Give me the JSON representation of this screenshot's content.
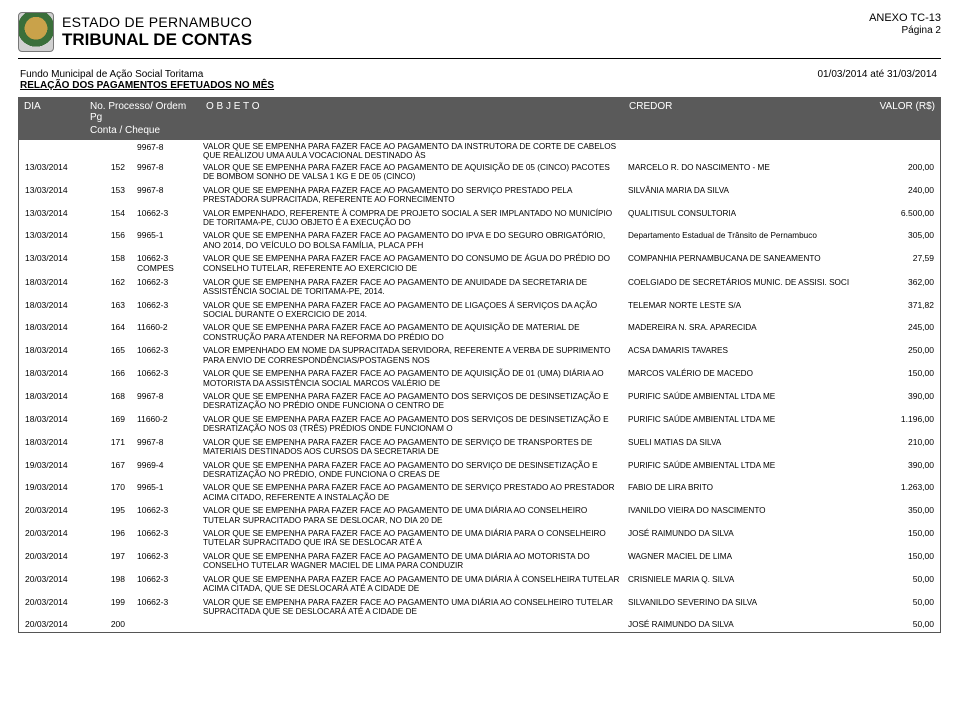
{
  "header": {
    "state": "ESTADO DE PERNAMBUCO",
    "tribunal": "TRIBUNAL DE CONTAS",
    "annex": "ANEXO TC-13",
    "page": "Página 2"
  },
  "band": {
    "fundo": "Fundo Municipal de Ação Social Toritama",
    "relacao": "RELAÇÃO DOS PAGAMENTOS EFETUADOS NO MÊS",
    "periodo": "01/03/2014 até 31/03/2014"
  },
  "columns": {
    "dia": "DIA",
    "processo": "No. Processo/ Ordem Pg",
    "conta": "Conta / Cheque",
    "objeto": "O B J E T O",
    "credor": "CREDOR",
    "valor": "VALOR (R$)"
  },
  "prefix": {
    "conta": "9967-8",
    "objeto": "VALOR QUE SE EMPENHA PARA FAZER FACE AO PAGAMENTO DA INSTRUTORA DE CORTE DE CABELOS QUE REALIZOU UMA AULA VOCACIONAL DESTINADO ÀS"
  },
  "rows": [
    {
      "dia": "13/03/2014",
      "proc": "152",
      "conta": "9967-8",
      "objeto": "VALOR QUE SE EMPENHA PARA FAZER FACE AO PAGAMENTO DE AQUISIÇÃO DE 05 (CINCO) PACOTES DE BOMBOM SONHO DE VALSA 1 KG E DE 05 (CINCO)",
      "credor": "MARCELO R. DO NASCIMENTO - ME",
      "valor": "200,00"
    },
    {
      "dia": "13/03/2014",
      "proc": "153",
      "conta": "9967-8",
      "objeto": "VALOR QUE SE EMPENHA PARA FAZER FACE AO PAGAMENTO DO SERVIÇO PRESTADO PELA PRESTADORA SUPRACITADA, REFERENTE AO FORNECIMENTO",
      "credor": "SILVÂNIA MARIA DA SILVA",
      "valor": "240,00"
    },
    {
      "dia": "13/03/2014",
      "proc": "154",
      "conta": "10662-3",
      "objeto": "VALOR EMPENHADO, REFERENTE À COMPRA DE PROJETO SOCIAL A SER IMPLANTADO NO MUNICÍPIO DE TORITAMA-PE, CUJO OBJETO É A EXECUÇÃO DO",
      "credor": "QUALITISUL CONSULTORIA",
      "valor": "6.500,00"
    },
    {
      "dia": "13/03/2014",
      "proc": "156",
      "conta": "9965-1",
      "objeto": "VALOR QUE SE EMPENHA PARA FAZER FACE AO PAGAMENTO DO IPVA E DO SEGURO OBRIGATÓRIO, ANO 2014, DO VEÍCULO DO BOLSA FAMÍLIA, PLACA PFH",
      "credor": "Departamento Estadual de Trânsito de Pernambuco",
      "valor": "305,00"
    },
    {
      "dia": "13/03/2014",
      "proc": "158",
      "conta": "10662-3      COMPES",
      "objeto": "VALOR QUE SE EMPENHA PARA FAZER FACE AO PAGAMENTO DO CONSUMO DE ÁGUA DO PRÉDIO DO CONSELHO TUTELAR, REFERENTE AO EXERCICIO DE",
      "credor": "COMPANHIA PERNAMBUCANA DE SANEAMENTO",
      "valor": "27,59"
    },
    {
      "dia": "18/03/2014",
      "proc": "162",
      "conta": "10662-3",
      "objeto": "VALOR QUE SE EMPENHA PARA FAZER FACE AO PAGAMENTO DE ANUIDADE DA SECRETARIA DE ASSISTÊNCIA SOCIAL DE TORITAMA-PE, 2014.",
      "credor": "COELGIADO DE SECRETÁRIOS MUNIC. DE ASSISI. SOCI",
      "valor": "362,00"
    },
    {
      "dia": "18/03/2014",
      "proc": "163",
      "conta": "10662-3",
      "objeto": "VALOR QUE SE EMPENHA PARA FAZER FACE AO PAGAMENTO DE LIGAÇOES Á SERVIÇOS DA AÇÃO SOCIAL DURANTE O EXERCICIO DE 2014.",
      "credor": "TELEMAR NORTE LESTE S/A",
      "valor": "371,82"
    },
    {
      "dia": "18/03/2014",
      "proc": "164",
      "conta": "11660-2",
      "objeto": "VALOR QUE SE EMPENHA PARA FAZER FACE AO PAGAMENTO DE AQUISIÇÃO DE MATERIAL DE CONSTRUÇÃO PARA ATENDER NA REFORMA DO PRÉDIO DO",
      "credor": "MADEREIRA N. SRA. APARECIDA",
      "valor": "245,00"
    },
    {
      "dia": "18/03/2014",
      "proc": "165",
      "conta": "10662-3",
      "objeto": "VALOR EMPENHADO EM NOME DA SUPRACITADA SERVIDORA, REFERENTE A VERBA DE SUPRIMENTO PARA ENVIO DE CORRESPONDÊNCIAS/POSTAGENS NOS",
      "credor": "ACSA DAMARIS TAVARES",
      "valor": "250,00"
    },
    {
      "dia": "18/03/2014",
      "proc": "166",
      "conta": "10662-3",
      "objeto": "VALOR QUE SE EMPENHA PARA FAZER FACE AO PAGAMENTO DE AQUISIÇÃO DE 01 (UMA) DIÁRIA AO MOTORISTA DA ASSISTÊNCIA SOCIAL MARCOS VALÉRIO DE",
      "credor": "MARCOS VALÉRIO DE MACEDO",
      "valor": "150,00"
    },
    {
      "dia": "18/03/2014",
      "proc": "168",
      "conta": "9967-8",
      "objeto": "VALOR QUE SE EMPENHA PARA FAZER FACE AO PAGAMENTO DOS SERVIÇOS DE DESINSETIZAÇÃO E DESRATIZAÇÃO NO PRÉDIO ONDE FUNCIONA O CENTRO DE",
      "credor": "PURIFIC SAÚDE AMBIENTAL LTDA ME",
      "valor": "390,00"
    },
    {
      "dia": "18/03/2014",
      "proc": "169",
      "conta": "11660-2",
      "objeto": "VALOR QUE SE EMPENHA PARA FAZER FACE AO PAGAMENTO DOS SERVIÇOS DE DESINSETIZAÇÃO E DESRATIZAÇÃO NOS 03 (TRÊS) PRÉDIOS ONDE FUNCIONAM O",
      "credor": "PURIFIC SAÚDE AMBIENTAL LTDA ME",
      "valor": "1.196,00"
    },
    {
      "dia": "18/03/2014",
      "proc": "171",
      "conta": "9967-8",
      "objeto": "VALOR QUE SE EMPENHA PARA FAZER FACE AO PAGAMENTO DE SERVIÇO DE TRANSPORTES DE MATERIAIS DESTINADOS AOS CURSOS DA SECRETARIA DE",
      "credor": "SUELI MATIAS DA SILVA",
      "valor": "210,00"
    },
    {
      "dia": "19/03/2014",
      "proc": "167",
      "conta": "9969-4",
      "objeto": "VALOR QUE SE EMPENHA PARA FAZER FACE AO PAGAMENTO DO SERVIÇO DE DESINSETIZAÇÃO E DESRATIZAÇÃO NO PRÉDIO, ONDE FUNCIONA O CREAS DE",
      "credor": "PURIFIC SAÚDE AMBIENTAL LTDA ME",
      "valor": "390,00"
    },
    {
      "dia": "19/03/2014",
      "proc": "170",
      "conta": "9965-1",
      "objeto": "VALOR QUE SE EMPENHA PARA FAZER FACE AO PAGAMENTO DE SERVIÇO PRESTADO AO PRESTADOR ACIMA CITADO, REFERENTE A INSTALAÇÃO DE",
      "credor": "FABIO DE LIRA BRITO",
      "valor": "1.263,00"
    },
    {
      "dia": "20/03/2014",
      "proc": "195",
      "conta": "10662-3",
      "objeto": "VALOR QUE SE EMPENHA PARA FAZER FACE AO PAGAMENTO DE UMA DIÁRIA AO CONSELHEIRO TUTELAR SUPRACITADO PARA SE DESLOCAR, NO DIA 20 DE",
      "credor": "IVANILDO VIEIRA DO NASCIMENTO",
      "valor": "350,00"
    },
    {
      "dia": "20/03/2014",
      "proc": "196",
      "conta": "10662-3",
      "objeto": "VALOR QUE SE EMPENHA PARA FAZER FACE AO PAGAMENTO DE UMA DIÁRIA PARA O CONSELHEIRO TUTELAR SUPRACITADO QUE IRÁ SE DESLOCAR ATÉ A",
      "credor": "JOSÉ RAIMUNDO DA SILVA",
      "valor": "150,00"
    },
    {
      "dia": "20/03/2014",
      "proc": "197",
      "conta": "10662-3",
      "objeto": "VALOR QUE SE EMPENHA PARA FAZER FACE AO PAGAMENTO DE UMA DIÁRIA AO MOTORISTA DO CONSELHO TUTELAR WAGNER MACIEL DE LIMA PARA CONDUZIR",
      "credor": "WAGNER MACIEL DE LIMA",
      "valor": "150,00"
    },
    {
      "dia": "20/03/2014",
      "proc": "198",
      "conta": "10662-3",
      "objeto": "VALOR QUE SE EMPENHA PARA FAZER FACE AO PAGAMENTO DE UMA DIÁRIA  À CONSELHEIRA TUTELAR ACIMA CITADA, QUE SE DESLOCARÁ ATÉ A CIDADE DE",
      "credor": "CRISNIELE MARIA Q. SILVA",
      "valor": "50,00"
    },
    {
      "dia": "20/03/2014",
      "proc": "199",
      "conta": "10662-3",
      "objeto": "VALOR QUE SE EMPENHA PARA FAZER FACE AO PAGAMENTO UMA DIÁRIA AO CONSELHEIRO TUTELAR SUPRACITADA QUE SE DESLOCARÁ ATÉ A CIDADE DE",
      "credor": "SILVANILDO SEVERINO DA SILVA",
      "valor": "50,00"
    },
    {
      "dia": "20/03/2014",
      "proc": "200",
      "conta": "",
      "objeto": "",
      "credor": "JOSÉ RAIMUNDO DA SILVA",
      "valor": "50,00"
    }
  ]
}
